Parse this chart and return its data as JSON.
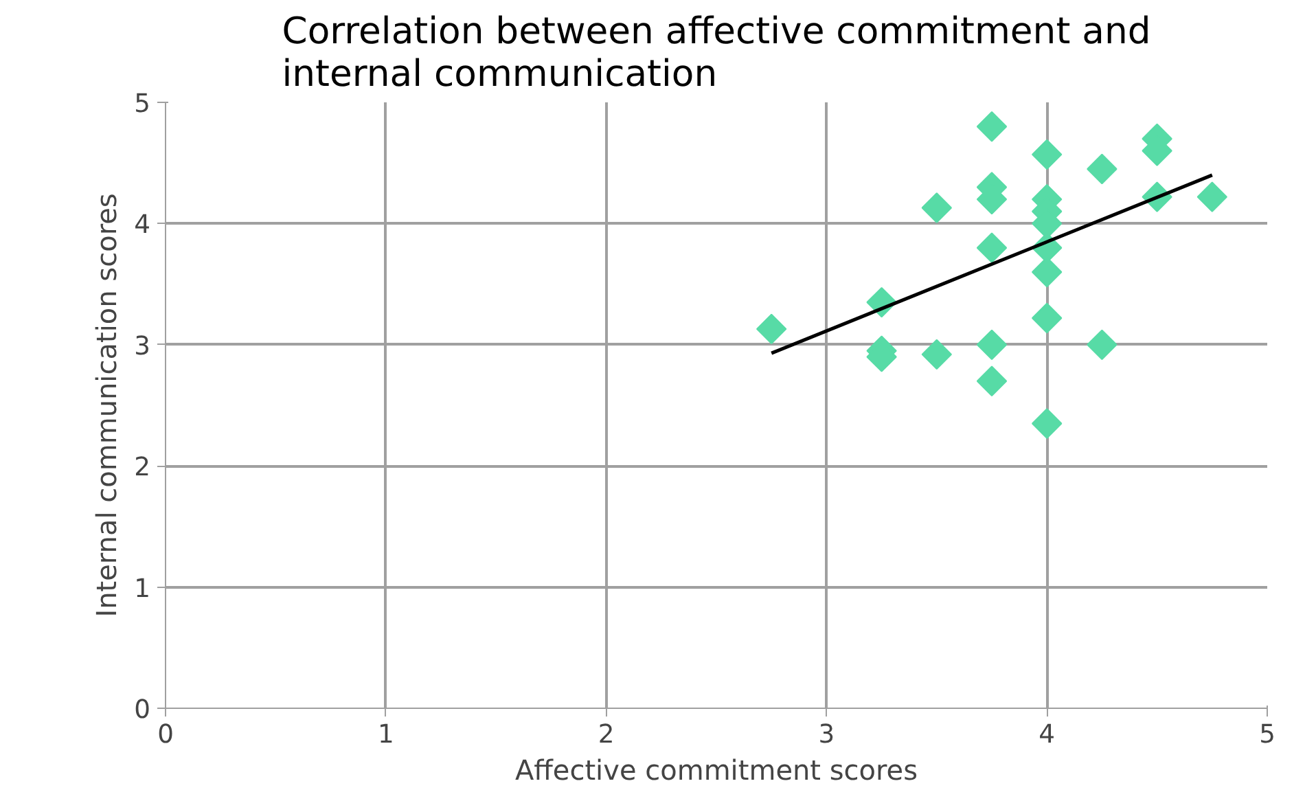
{
  "chart_data": {
    "type": "scatter",
    "title": "Correlation between affective commitment and internal communication",
    "xlabel": "Affective commitment scores",
    "ylabel": "Internal communication scores",
    "xlim": [
      0,
      5
    ],
    "ylim": [
      0,
      5
    ],
    "xticks": [
      0,
      1,
      2,
      3,
      4,
      5
    ],
    "yticks": [
      0,
      1,
      2,
      3,
      4,
      5
    ],
    "grid": true,
    "marker": "diamond",
    "series": [
      {
        "color": "#57dba6",
        "x": [
          2.75,
          3.25,
          3.25,
          3.25,
          3.5,
          3.5,
          3.75,
          3.75,
          3.75,
          3.75,
          3.75,
          3.75,
          4.0,
          4.0,
          4.0,
          4.0,
          4.0,
          4.0,
          4.0,
          4.0,
          4.25,
          4.25,
          4.5,
          4.5,
          4.5,
          4.75
        ],
        "values": [
          3.13,
          3.35,
          2.95,
          2.9,
          4.13,
          2.92,
          4.8,
          4.3,
          4.2,
          3.8,
          3.0,
          2.7,
          4.57,
          4.2,
          4.1,
          4.0,
          3.8,
          3.6,
          3.22,
          2.35,
          4.45,
          3.0,
          4.7,
          4.6,
          4.22,
          4.22
        ]
      },
      {
        "type": "line",
        "marker": "none",
        "color": "#000000",
        "x": [
          2.75,
          4.75
        ],
        "values": [
          2.93,
          4.4
        ]
      }
    ]
  }
}
